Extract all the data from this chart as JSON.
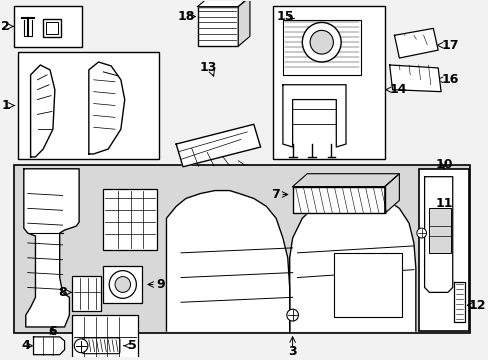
{
  "bg": "#f2f2f2",
  "white": "#ffffff",
  "gray": "#d8d8d8",
  "black": "#000000",
  "fs": 8,
  "fs_big": 9
}
